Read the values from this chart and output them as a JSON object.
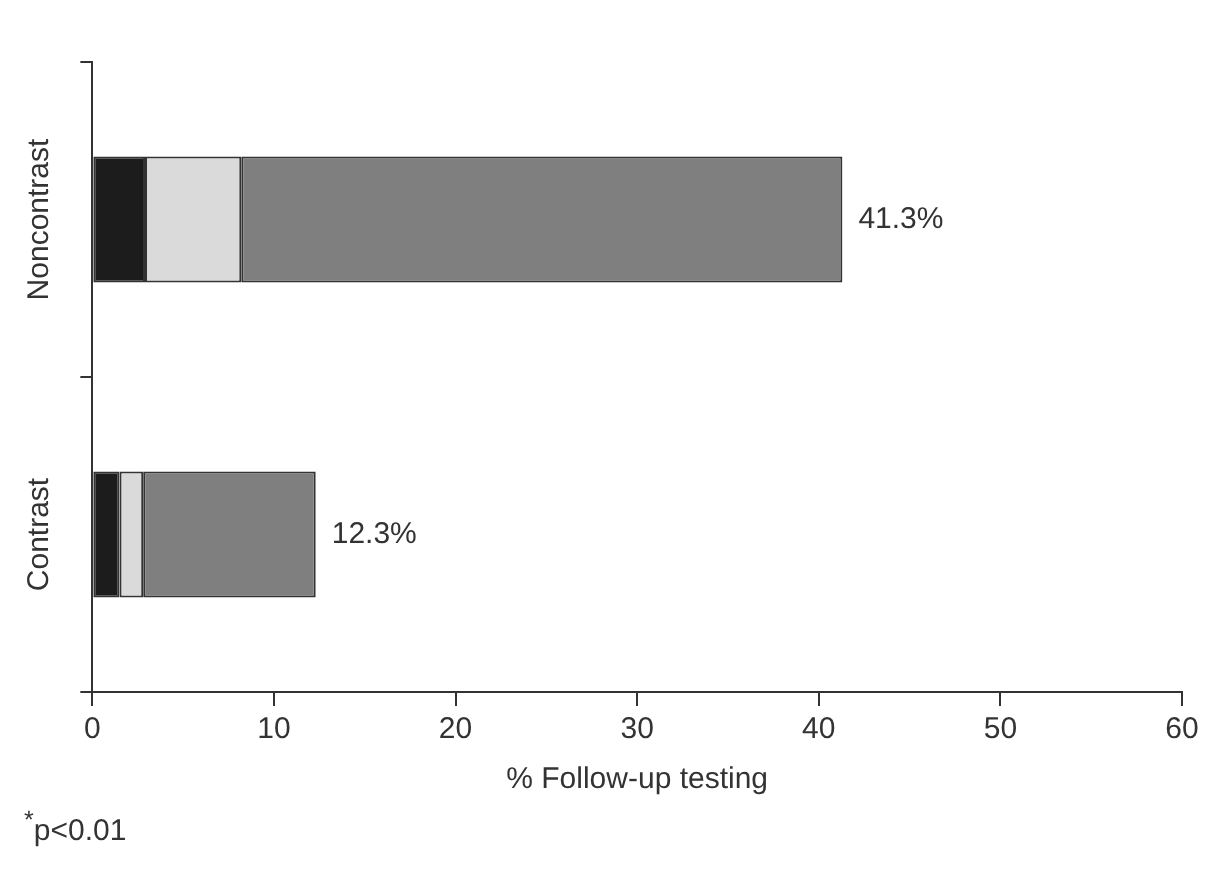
{
  "chart_data": {
    "type": "bar",
    "orientation": "horizontal",
    "stacked": true,
    "categories": [
      "Noncontrast",
      "Contrast"
    ],
    "series": [
      {
        "color": "#1c1c1c",
        "values": [
          2.9,
          1.5
        ]
      },
      {
        "color": "#dadada",
        "values": [
          5.3,
          1.3
        ]
      },
      {
        "color": "#7f7f7f",
        "values": [
          33.1,
          9.5
        ]
      }
    ],
    "totals": [
      "41.3%",
      "12.3%"
    ],
    "xlabel": "% Follow-up testing",
    "xlim": [
      0,
      60
    ],
    "xticks": [
      0,
      10,
      20,
      30,
      40,
      50,
      60
    ],
    "grid": false,
    "legend": false,
    "annotations": [
      "$^{*}$p<0.01"
    ]
  }
}
